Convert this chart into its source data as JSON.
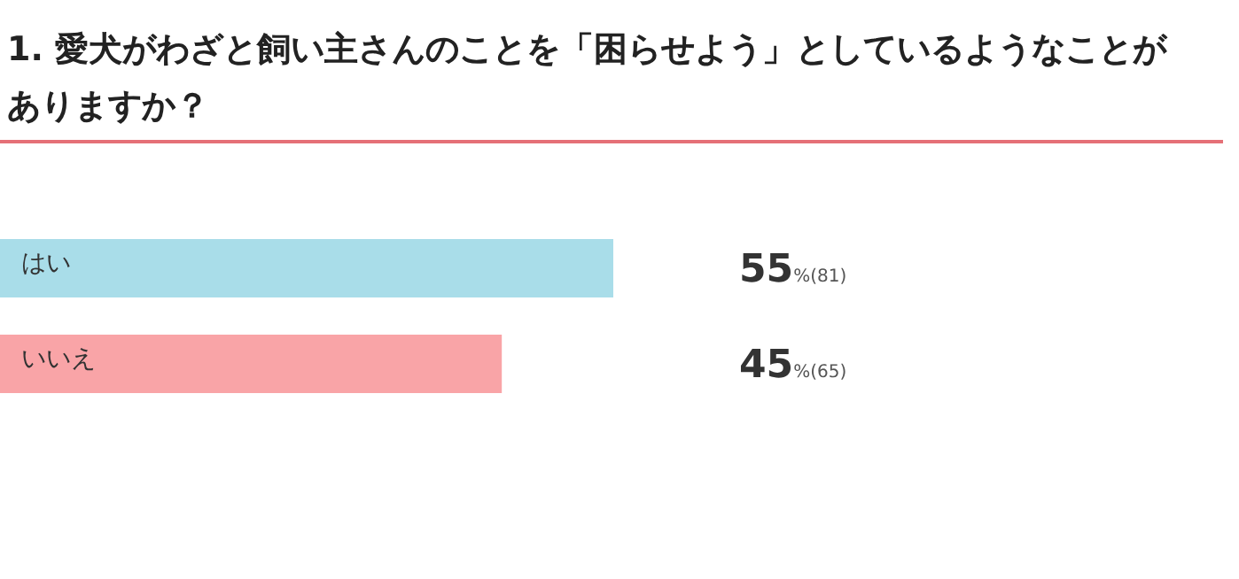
{
  "chart_data": {
    "type": "bar",
    "orientation": "horizontal",
    "title": "1. 愛犬がわざと飼い主さんのことを「困らせよう」としているようなことがありますか？",
    "categories": [
      "はい",
      "いいえ"
    ],
    "values": [
      55,
      45
    ],
    "colors": [
      "#a9dde9",
      "#f9a4a7"
    ],
    "value_labels": [
      "55%(81)",
      "45%(65)"
    ]
  }
}
